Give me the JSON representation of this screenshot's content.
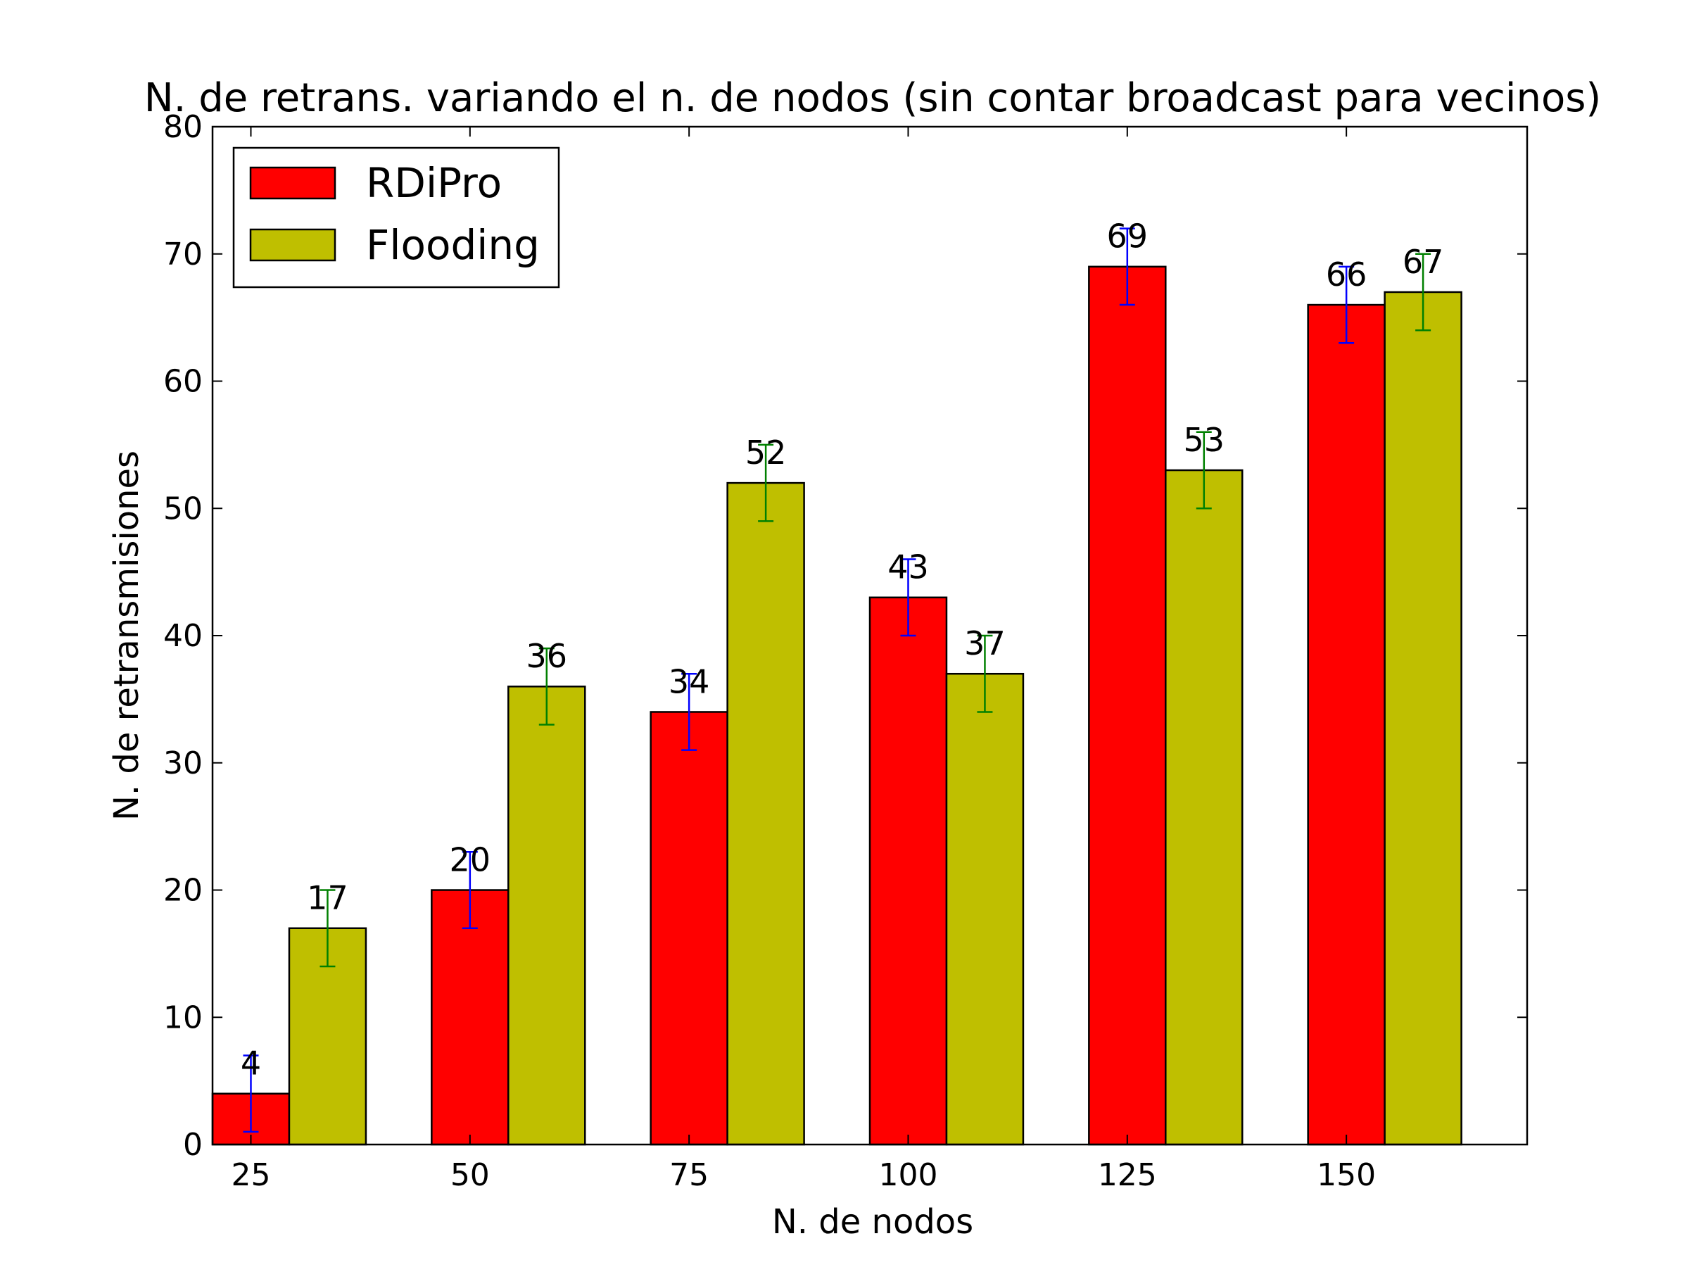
{
  "chart_data": {
    "type": "bar",
    "title": "N. de retrans. variando el n. de nodos (sin contar broadcast para vecinos)",
    "xlabel": "N. de nodos",
    "ylabel": "N. de retransmisiones",
    "categories": [
      "25",
      "50",
      "75",
      "100",
      "125",
      "150"
    ],
    "ylim": [
      0,
      80
    ],
    "yticks": [
      0,
      10,
      20,
      30,
      40,
      50,
      60,
      70,
      80
    ],
    "grid": false,
    "legend_position": "top-left",
    "series": [
      {
        "name": "RDiPro",
        "color": "#ff0000",
        "error_color": "#0000ff",
        "values": [
          4,
          20,
          34,
          43,
          69,
          66
        ],
        "labels": [
          "4",
          "20",
          "34",
          "43",
          "69",
          "66"
        ],
        "errors": [
          3,
          3,
          3,
          3,
          3,
          3
        ]
      },
      {
        "name": "Flooding",
        "color": "#bfbf00",
        "error_color": "#008000",
        "values": [
          17,
          36,
          52,
          37,
          53,
          67
        ],
        "labels": [
          "17",
          "36",
          "52",
          "37",
          "53",
          "67"
        ],
        "errors": [
          3,
          3,
          3,
          3,
          3,
          3
        ]
      }
    ]
  }
}
